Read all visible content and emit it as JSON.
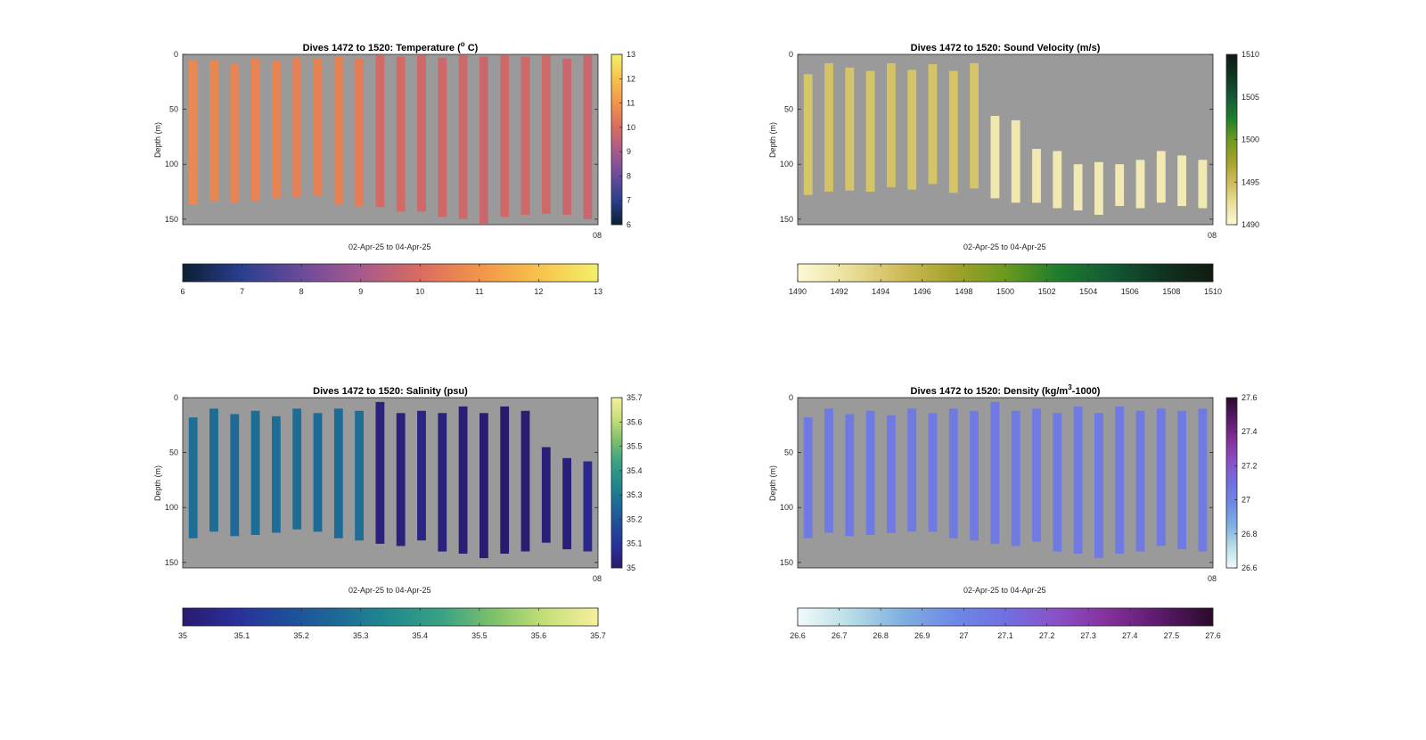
{
  "chart_data": [
    {
      "type": "heatmap",
      "title": "Dives 1472 to 1520: Temperature (°C)",
      "title_main": "Dives 1472 to 1520: Temperature (",
      "title_sup": "o",
      "title_end": " C)",
      "xlabel": "02-Apr-25 to 04-Apr-25",
      "ylabel": "Depth (m)",
      "x_tick_label": "08",
      "y_ticks": [
        0,
        50,
        100,
        150
      ],
      "ylim": [
        0,
        155
      ],
      "background_color": "#9a9a9a",
      "colormap": [
        "#0b1f33",
        "#2a3f8f",
        "#6b4a9a",
        "#a65a8e",
        "#d96c60",
        "#f2944a",
        "#f7c24a",
        "#f2f06a"
      ],
      "vertical_colorbar": {
        "min": 6,
        "max": 13,
        "ticks": [
          6,
          7,
          8,
          9,
          10,
          11,
          12,
          13
        ]
      },
      "horizontal_colorbar": {
        "min": 6,
        "max": 13,
        "ticks": [
          6,
          7,
          8,
          9,
          10,
          11,
          12,
          13
        ]
      },
      "profiles": [
        {
          "top": 5,
          "bottom": 137,
          "value": 10.7
        },
        {
          "top": 5,
          "bottom": 133,
          "value": 10.7
        },
        {
          "top": 8,
          "bottom": 135,
          "value": 10.6
        },
        {
          "top": 4,
          "bottom": 133,
          "value": 10.6
        },
        {
          "top": 6,
          "bottom": 131,
          "value": 10.6
        },
        {
          "top": 3,
          "bottom": 130,
          "value": 10.5
        },
        {
          "top": 4,
          "bottom": 129,
          "value": 10.5
        },
        {
          "top": 2,
          "bottom": 137,
          "value": 10.5
        },
        {
          "top": 4,
          "bottom": 138,
          "value": 10.4
        },
        {
          "top": 1,
          "bottom": 139,
          "value": 9.9
        },
        {
          "top": 2,
          "bottom": 143,
          "value": 9.9
        },
        {
          "top": 1,
          "bottom": 143,
          "value": 9.8
        },
        {
          "top": 3,
          "bottom": 148,
          "value": 9.8
        },
        {
          "top": 1,
          "bottom": 150,
          "value": 9.8
        },
        {
          "top": 2,
          "bottom": 154,
          "value": 9.7
        },
        {
          "top": 1,
          "bottom": 148,
          "value": 9.8
        },
        {
          "top": 2,
          "bottom": 146,
          "value": 9.8
        },
        {
          "top": 1,
          "bottom": 145,
          "value": 9.8
        },
        {
          "top": 4,
          "bottom": 146,
          "value": 9.7
        },
        {
          "top": 1,
          "bottom": 150,
          "value": 9.7
        }
      ]
    },
    {
      "type": "heatmap",
      "title": "Dives 1472 to 1520: Sound Velocity (m/s)",
      "title_main": "Dives 1472 to 1520: Sound Velocity (m/s)",
      "title_sup": "",
      "title_end": "",
      "xlabel": "02-Apr-25 to 04-Apr-25",
      "ylabel": "Depth (m)",
      "x_tick_label": "08",
      "y_ticks": [
        0,
        50,
        100,
        150
      ],
      "ylim": [
        0,
        155
      ],
      "background_color": "#9a9a9a",
      "colormap": [
        "#fdf9d6",
        "#eadf9a",
        "#cfbb58",
        "#a3a22a",
        "#6b9a1e",
        "#1e7d2c",
        "#145a35",
        "#0f3522",
        "#121a12"
      ],
      "vertical_colorbar": {
        "min": 1490,
        "max": 1510,
        "ticks": [
          1490,
          1495,
          1500,
          1505,
          1510
        ]
      },
      "horizontal_colorbar": {
        "min": 1490,
        "max": 1510,
        "ticks": [
          1490,
          1492,
          1494,
          1496,
          1498,
          1500,
          1502,
          1504,
          1506,
          1508,
          1510
        ]
      },
      "profiles": [
        {
          "top": 18,
          "bottom": 128,
          "value": 1494.3
        },
        {
          "top": 8,
          "bottom": 125,
          "value": 1494.5
        },
        {
          "top": 12,
          "bottom": 124,
          "value": 1494.4
        },
        {
          "top": 15,
          "bottom": 125,
          "value": 1494.4
        },
        {
          "top": 8,
          "bottom": 121,
          "value": 1494.5
        },
        {
          "top": 14,
          "bottom": 123,
          "value": 1494.4
        },
        {
          "top": 9,
          "bottom": 118,
          "value": 1494.4
        },
        {
          "top": 15,
          "bottom": 126,
          "value": 1494.4
        },
        {
          "top": 8,
          "bottom": 122,
          "value": 1494.3
        },
        {
          "top": 56,
          "bottom": 131,
          "value": 1491.6
        },
        {
          "top": 60,
          "bottom": 135,
          "value": 1491.6
        },
        {
          "top": 86,
          "bottom": 135,
          "value": 1491.5
        },
        {
          "top": 88,
          "bottom": 140,
          "value": 1491.5
        },
        {
          "top": 100,
          "bottom": 142,
          "value": 1491.4
        },
        {
          "top": 98,
          "bottom": 146,
          "value": 1491.4
        },
        {
          "top": 100,
          "bottom": 138,
          "value": 1491.4
        },
        {
          "top": 96,
          "bottom": 140,
          "value": 1491.4
        },
        {
          "top": 88,
          "bottom": 135,
          "value": 1491.5
        },
        {
          "top": 92,
          "bottom": 138,
          "value": 1491.4
        },
        {
          "top": 96,
          "bottom": 140,
          "value": 1491.5
        }
      ]
    },
    {
      "type": "heatmap",
      "title": "Dives 1472 to 1520: Salinity (psu)",
      "title_main": "Dives 1472 to 1520: Salinity (psu)",
      "title_sup": "",
      "title_end": "",
      "xlabel": "02-Apr-25 to 04-Apr-25",
      "ylabel": "Depth (m)",
      "x_tick_label": "08",
      "y_ticks": [
        0,
        50,
        100,
        150
      ],
      "ylim": [
        0,
        155
      ],
      "background_color": "#9a9a9a",
      "colormap": [
        "#2a1a6e",
        "#2a2f9a",
        "#1f4d9a",
        "#1d6a98",
        "#218a8d",
        "#3aa283",
        "#7ec16a",
        "#c7df78",
        "#f6ef9e"
      ],
      "vertical_colorbar": {
        "min": 35,
        "max": 35.7,
        "ticks": [
          35,
          35.1,
          35.2,
          35.3,
          35.4,
          35.5,
          35.6,
          35.7
        ]
      },
      "horizontal_colorbar": {
        "min": 35,
        "max": 35.7,
        "ticks": [
          35,
          35.1,
          35.2,
          35.3,
          35.4,
          35.5,
          35.6,
          35.7
        ]
      },
      "profiles": [
        {
          "top": 18,
          "bottom": 128,
          "value": 35.27
        },
        {
          "top": 10,
          "bottom": 122,
          "value": 35.27
        },
        {
          "top": 15,
          "bottom": 126,
          "value": 35.26
        },
        {
          "top": 12,
          "bottom": 125,
          "value": 35.27
        },
        {
          "top": 17,
          "bottom": 123,
          "value": 35.27
        },
        {
          "top": 10,
          "bottom": 120,
          "value": 35.27
        },
        {
          "top": 14,
          "bottom": 122,
          "value": 35.26
        },
        {
          "top": 10,
          "bottom": 128,
          "value": 35.26
        },
        {
          "top": 12,
          "bottom": 130,
          "value": 35.27
        },
        {
          "top": 4,
          "bottom": 133,
          "value": 35.03
        },
        {
          "top": 14,
          "bottom": 135,
          "value": 35.03
        },
        {
          "top": 12,
          "bottom": 130,
          "value": 35.04
        },
        {
          "top": 14,
          "bottom": 140,
          "value": 35.03
        },
        {
          "top": 8,
          "bottom": 142,
          "value": 35.02
        },
        {
          "top": 14,
          "bottom": 146,
          "value": 35.01
        },
        {
          "top": 8,
          "bottom": 142,
          "value": 35.0
        },
        {
          "top": 12,
          "bottom": 140,
          "value": 35.01
        },
        {
          "top": 45,
          "bottom": 132,
          "value": 35.02
        },
        {
          "top": 55,
          "bottom": 138,
          "value": 35.02
        },
        {
          "top": 58,
          "bottom": 140,
          "value": 35.06
        }
      ]
    },
    {
      "type": "heatmap",
      "title": "Dives 1472 to 1520: Density (kg/m³-1000)",
      "title_main": "Dives 1472 to 1520: Density (kg/m",
      "title_sup": "3",
      "title_end": "-1000)",
      "xlabel": "02-Apr-25 to 04-Apr-25",
      "ylabel": "Depth (m)",
      "x_tick_label": "08",
      "y_ticks": [
        0,
        50,
        100,
        150
      ],
      "ylim": [
        0,
        155
      ],
      "background_color": "#9a9a9a",
      "colormap": [
        "#f2fafa",
        "#b8dde6",
        "#7fb0e0",
        "#6e8ae6",
        "#7070e0",
        "#8a50c8",
        "#84309a",
        "#5a1a6a",
        "#2a0a2a"
      ],
      "vertical_colorbar": {
        "min": 26.6,
        "max": 27.6,
        "ticks": [
          26.6,
          26.8,
          27,
          27.2,
          27.4,
          27.6
        ]
      },
      "horizontal_colorbar": {
        "min": 26.6,
        "max": 27.6,
        "ticks": [
          26.6,
          26.7,
          26.8,
          26.9,
          27,
          27.1,
          27.2,
          27.3,
          27.4,
          27.5,
          27.6
        ]
      },
      "profiles": [
        {
          "top": 18,
          "bottom": 128,
          "value": 27.05
        },
        {
          "top": 10,
          "bottom": 123,
          "value": 27.05
        },
        {
          "top": 15,
          "bottom": 126,
          "value": 27.05
        },
        {
          "top": 12,
          "bottom": 125,
          "value": 27.05
        },
        {
          "top": 16,
          "bottom": 123,
          "value": 27.05
        },
        {
          "top": 10,
          "bottom": 122,
          "value": 27.05
        },
        {
          "top": 14,
          "bottom": 122,
          "value": 27.05
        },
        {
          "top": 10,
          "bottom": 128,
          "value": 27.05
        },
        {
          "top": 12,
          "bottom": 130,
          "value": 27.05
        },
        {
          "top": 4,
          "bottom": 133,
          "value": 27.05
        },
        {
          "top": 12,
          "bottom": 135,
          "value": 27.05
        },
        {
          "top": 10,
          "bottom": 131,
          "value": 27.05
        },
        {
          "top": 14,
          "bottom": 140,
          "value": 27.05
        },
        {
          "top": 8,
          "bottom": 142,
          "value": 27.05
        },
        {
          "top": 14,
          "bottom": 146,
          "value": 27.05
        },
        {
          "top": 8,
          "bottom": 142,
          "value": 27.05
        },
        {
          "top": 12,
          "bottom": 140,
          "value": 27.05
        },
        {
          "top": 10,
          "bottom": 135,
          "value": 27.05
        },
        {
          "top": 12,
          "bottom": 138,
          "value": 27.05
        },
        {
          "top": 10,
          "bottom": 140,
          "value": 27.05
        }
      ]
    }
  ]
}
